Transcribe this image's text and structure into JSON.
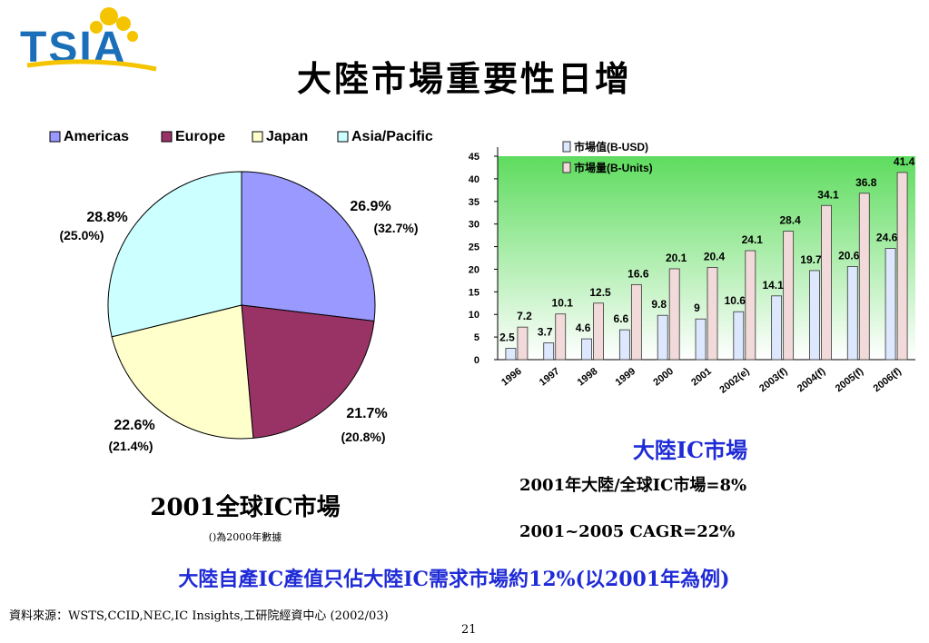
{
  "logo": {
    "text": "TSIA"
  },
  "title": "大陸市場重要性日增",
  "pie": {
    "legend": [
      {
        "label": "Americas",
        "color": "#9999ff"
      },
      {
        "label": "Europe",
        "color": "#993366"
      },
      {
        "label": "Japan",
        "color": "#ffffcc"
      },
      {
        "label": "Asia/Pacific",
        "color": "#ccffff"
      }
    ],
    "caption": "2001全球IC市場",
    "note": "()為2000年數據"
  },
  "chart_data": [
    {
      "type": "pie",
      "labels": [
        "Americas",
        "Europe",
        "Japan",
        "Asia/Pacific"
      ],
      "values": [
        26.9,
        21.7,
        22.6,
        28.8
      ],
      "values_2000": [
        32.7,
        20.8,
        21.4,
        25.0
      ],
      "value_labels": [
        "26.9%",
        "21.7%",
        "22.6%",
        "28.8%"
      ],
      "value_labels_2000": [
        "(32.7%)",
        "(20.8%)",
        "(21.4%)",
        "(25.0%)"
      ],
      "colors": [
        "#9999ff",
        "#993366",
        "#ffffcc",
        "#ccffff"
      ],
      "legend_position": "top"
    },
    {
      "type": "bar",
      "categories": [
        "1996",
        "1997",
        "1998",
        "1999",
        "2000",
        "2001",
        "2002(e)",
        "2003(f)",
        "2004(f)",
        "2005(f)",
        "2006(f)"
      ],
      "series": [
        {
          "name": "市場值(B-USD)",
          "values": [
            2.5,
            3.7,
            4.6,
            6.6,
            9.8,
            9,
            10.6,
            14.1,
            19.7,
            20.6,
            24.6
          ],
          "color": "#dde8ff"
        },
        {
          "name": "市場量(B-Units)",
          "values": [
            7.2,
            10.1,
            12.5,
            16.6,
            20.1,
            20.4,
            24.1,
            28.4,
            34.1,
            36.8,
            41.4
          ],
          "color": "#f2dada"
        }
      ],
      "yticks": [
        "0",
        "5",
        "10",
        "15",
        "20",
        "25",
        "30",
        "35",
        "40",
        "45"
      ],
      "ylim": [
        0,
        45
      ],
      "legend_position": "top-left",
      "caption": "大陸IC市場"
    }
  ],
  "stats": {
    "line1": "2001年大陸/全球IC市場=8%",
    "line2": "2001~2005 CAGR=22%"
  },
  "bottom_text": "大陸自產IC產值只佔大陸IC需求市場約12%(以2001年為例)",
  "source": "資料來源：WSTS,CCID,NEC,IC Insights,工研院經資中心 (2002/03)",
  "page_number": "21"
}
